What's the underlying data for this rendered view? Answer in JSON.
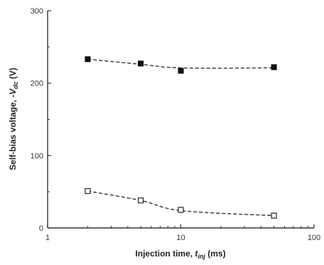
{
  "chart_data": {
    "type": "scatter",
    "x_scale": "log",
    "xlim": [
      1,
      100
    ],
    "ylim": [
      0,
      300
    ],
    "x_ticks": [
      1,
      10,
      100
    ],
    "y_ticks": [
      0,
      100,
      200,
      300
    ],
    "x_tick_labels": [
      "1",
      "10",
      "100"
    ],
    "y_tick_labels": [
      "0",
      "100",
      "200",
      "300"
    ],
    "xlabel": {
      "text": "Injection time, ",
      "italic": "t",
      "sub": "inj",
      "unit": " (ms)"
    },
    "ylabel": {
      "text": "Self-bias voltage, -",
      "italic": "V",
      "sub": "dc",
      "unit": " (V)"
    },
    "grid": false,
    "series": [
      {
        "marker": "filled-square",
        "x": [
          2,
          5,
          10,
          50
        ],
        "y": [
          233,
          227,
          217,
          222
        ],
        "trend_y": [
          233,
          226,
          221,
          221
        ]
      },
      {
        "marker": "open-square",
        "x": [
          2,
          5,
          10,
          50
        ],
        "y": [
          51,
          38,
          25,
          17
        ],
        "trend_y": [
          51,
          38,
          24,
          17
        ]
      }
    ],
    "colors": {
      "axis": "#333333",
      "marker": "#111111",
      "trend": "#333333"
    }
  }
}
